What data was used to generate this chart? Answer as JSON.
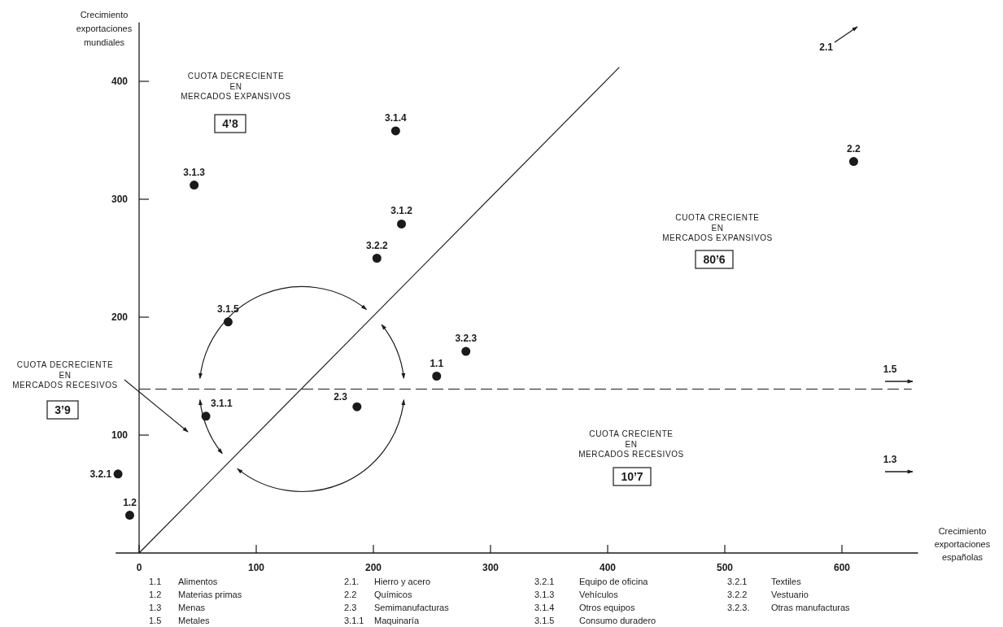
{
  "chart_data": {
    "type": "scatter",
    "xlabel": "Crecimiento exportaciones españolas",
    "ylabel": "Crecimiento exportaciones mundiales",
    "xlim": [
      -20,
      665
    ],
    "ylim": [
      0,
      450
    ],
    "xticks": [
      0,
      100,
      200,
      300,
      400,
      500,
      600
    ],
    "yticks": [
      100,
      200,
      300,
      400
    ],
    "grid": false,
    "marker": "circle",
    "series": [
      {
        "name": "3.1.4",
        "color": "#1a1a1a",
        "x": [
          219
        ],
        "values": [
          358
        ]
      },
      {
        "name": "3.1.3",
        "color": "#1a1a1a",
        "x": [
          47
        ],
        "values": [
          312
        ]
      },
      {
        "name": "3.1.2",
        "color": "#1a1a1a",
        "x": [
          224
        ],
        "values": [
          279
        ]
      },
      {
        "name": "3.2.2",
        "color": "#1a1a1a",
        "x": [
          203
        ],
        "values": [
          250
        ]
      },
      {
        "name": "3.1.5",
        "color": "#1a1a1a",
        "x": [
          76
        ],
        "values": [
          196
        ]
      },
      {
        "name": "2.2",
        "color": "#1a1a1a",
        "x": [
          610
        ],
        "values": [
          332
        ]
      },
      {
        "name": "3.2.3",
        "color": "#1a1a1a",
        "x": [
          279
        ],
        "values": [
          171
        ]
      },
      {
        "name": "1.1",
        "color": "#1a1a1a",
        "x": [
          254
        ],
        "values": [
          150
        ]
      },
      {
        "name": "2.3",
        "color": "#1a1a1a",
        "x": [
          186
        ],
        "values": [
          124
        ]
      },
      {
        "name": "3.1.1",
        "color": "#1a1a1a",
        "x": [
          57
        ],
        "values": [
          116
        ]
      },
      {
        "name": "3.2.1",
        "color": "#1a1a1a",
        "x": [
          -18
        ],
        "values": [
          67
        ]
      },
      {
        "name": "1.2",
        "color": "#1a1a1a",
        "x": [
          -8
        ],
        "values": [
          32
        ]
      },
      {
        "type": "line",
        "color": "#1a1a1a",
        "x": [
          0,
          410
        ],
        "values": [
          0,
          412
        ],
        "line_style": "solid",
        "marker": "none"
      }
    ],
    "ref_lines": [
      {
        "axis": "y",
        "value": 139,
        "line_style": "dashed",
        "color": "#1a1a1a"
      }
    ],
    "annotations": [
      "CUOTA DECRECIENTE\nEN\nMERCADOS EXPANSIVOS",
      "4’8",
      "CUOTA CRECIENTE\nEN\nMERCADOS EXPANSIVOS",
      "80’6",
      "CUOTA DECRECIENTE\nEN\nMERCADOS RECESIVOS",
      "3’9",
      "CUOTA CRECIENTE\nEN\nMERCADOS RECESIVOS",
      "10’7",
      "2.1",
      "1.5",
      "1.3",
      "1.1 Alimentos",
      "1.2 Materias primas",
      "1.3 Menas",
      "1.5 Metales",
      "2.1. Hierro y acero",
      "2.2 Químicos",
      "2.3 Semimanufacturas",
      "3.1.1 Maquinaría",
      "3.2.1 Equipo de oficina",
      "3.1.3 Vehículos",
      "3.1.4 Otros equipos",
      "3.1.5 Consumo duradero",
      "3.2.1 Textiles",
      "3.2.2 Vestuario",
      "3.2.3. Otras manufacturas"
    ]
  }
}
